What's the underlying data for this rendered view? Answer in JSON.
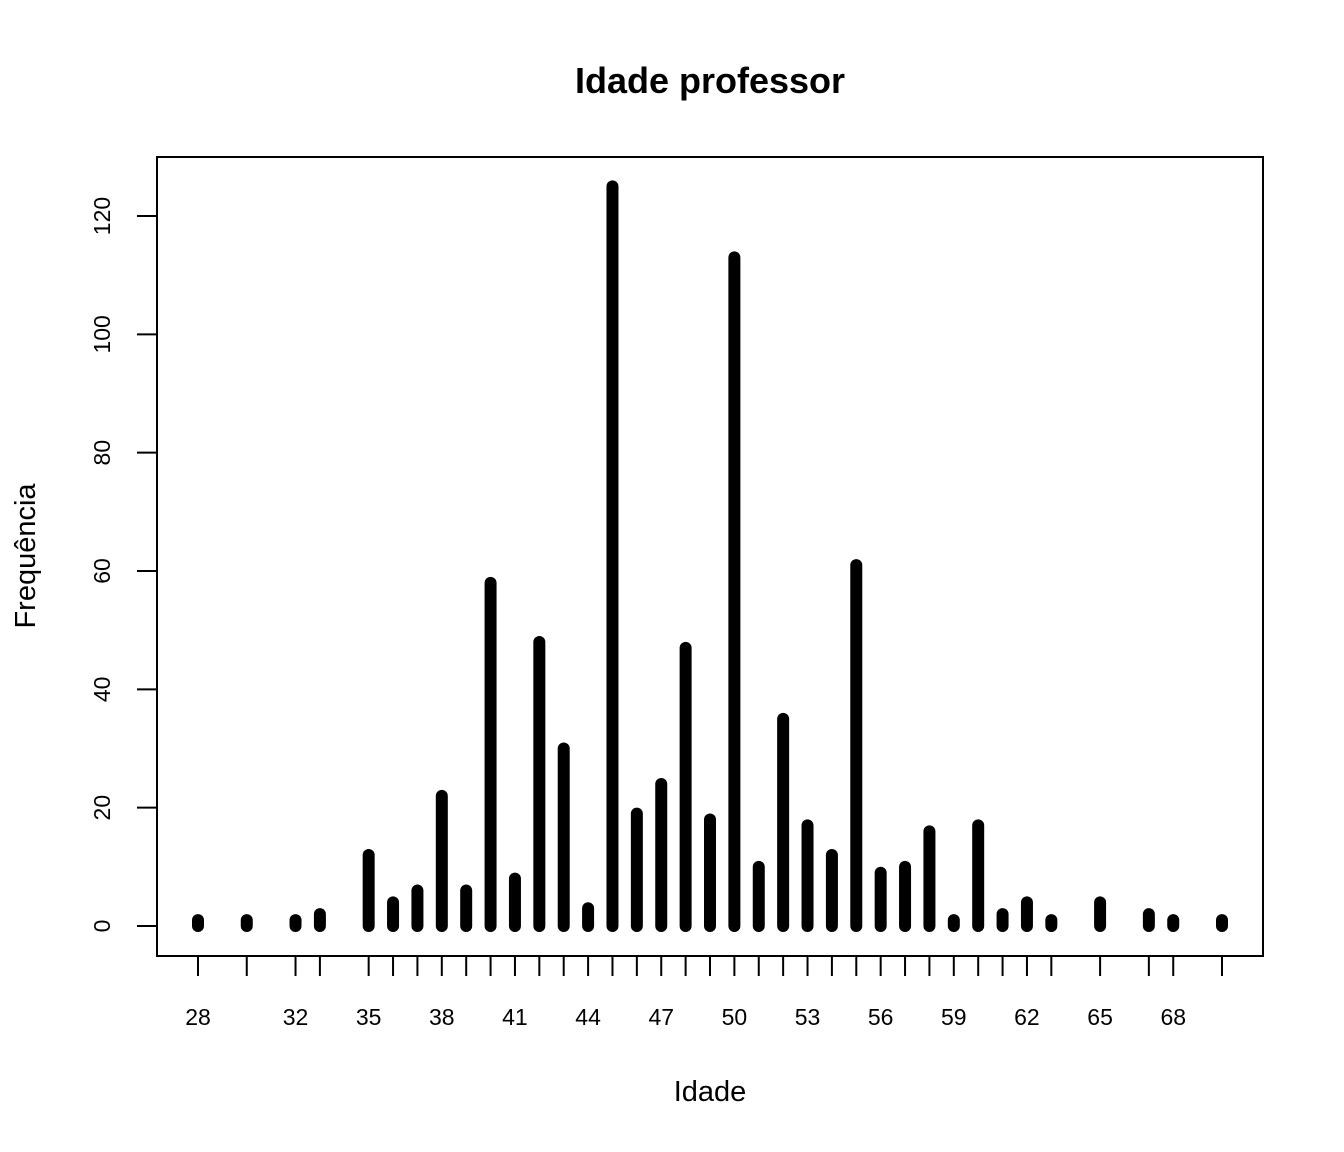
{
  "chart_data": {
    "type": "bar",
    "title": "Idade professor",
    "xlabel": "Idade",
    "ylabel": "Frequência",
    "x": [
      28,
      30,
      32,
      33,
      35,
      36,
      37,
      38,
      39,
      40,
      41,
      42,
      43,
      44,
      45,
      46,
      47,
      48,
      49,
      50,
      51,
      52,
      53,
      54,
      55,
      56,
      57,
      58,
      59,
      60,
      61,
      62,
      63,
      65,
      67,
      68,
      70
    ],
    "values": [
      1,
      1,
      1,
      2,
      12,
      4,
      6,
      22,
      6,
      58,
      8,
      48,
      30,
      3,
      125,
      19,
      24,
      47,
      18,
      113,
      10,
      35,
      17,
      12,
      61,
      9,
      10,
      16,
      1,
      17,
      2,
      4,
      1,
      4,
      2,
      1,
      1
    ],
    "x_ticks": [
      28,
      30,
      32,
      33,
      35,
      36,
      37,
      38,
      39,
      40,
      41,
      42,
      43,
      44,
      45,
      46,
      47,
      48,
      49,
      50,
      51,
      52,
      53,
      54,
      55,
      56,
      57,
      58,
      59,
      60,
      61,
      62,
      63,
      65,
      67,
      68,
      70
    ],
    "x_tick_labels": [
      "28",
      "",
      "32",
      "",
      "35",
      "",
      "",
      "38",
      "",
      "",
      "41",
      "",
      "",
      "44",
      "",
      "",
      "47",
      "",
      "",
      "50",
      "",
      "",
      "53",
      "",
      "",
      "56",
      "",
      "",
      "59",
      "",
      "",
      "62",
      "",
      "65",
      "",
      "68",
      ""
    ],
    "y_ticks": [
      0,
      20,
      40,
      60,
      80,
      100,
      120
    ],
    "y_tick_labels": [
      "0",
      "20",
      "40",
      "60",
      "80",
      "100",
      "120"
    ],
    "ylim": [
      0,
      125
    ],
    "xlim": [
      28,
      70
    ],
    "grid": false,
    "bar_color": "#000000"
  }
}
